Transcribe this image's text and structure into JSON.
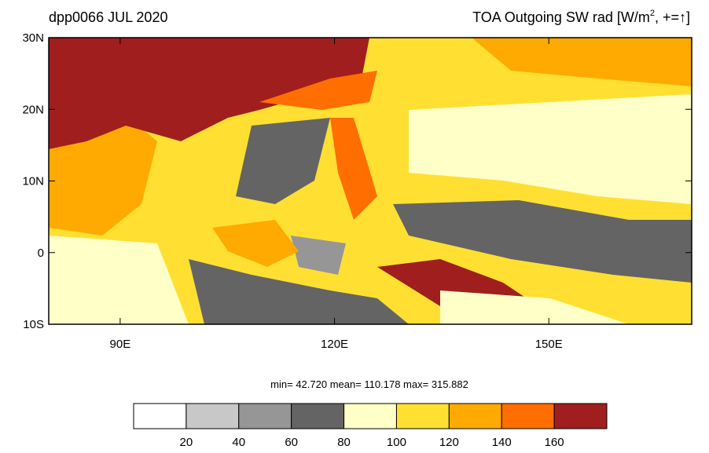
{
  "map": {
    "left_title": "dpp0066 JUL 2020",
    "right_title": {
      "main": "TOA Outgoing SW rad [W/m",
      "sup": "2",
      "end": ", +=↑]"
    },
    "xlim": [
      80,
      170
    ],
    "ylim": [
      -10,
      30
    ],
    "xticks": [
      {
        "value": 90,
        "label": "90E"
      },
      {
        "value": 120,
        "label": "120E"
      },
      {
        "value": 150,
        "label": "150E"
      }
    ],
    "yticks": [
      {
        "value": 30,
        "label": "30N"
      },
      {
        "value": 20,
        "label": "20N"
      },
      {
        "value": 10,
        "label": "10N"
      },
      0,
      {
        "value": -10,
        "label": "10S"
      }
    ],
    "stats": "min=  42.720  mean= 110.178  max= 315.882",
    "colorbar": {
      "levels": [
        20,
        40,
        60,
        80,
        100,
        120,
        140,
        160
      ],
      "colors": [
        "#ffffff",
        "#c8c8c8",
        "#969696",
        "#646464",
        "#ffffc8",
        "#ffe032",
        "#ffaa00",
        "#ff6e00",
        "#a01e1e"
      ]
    }
  }
}
